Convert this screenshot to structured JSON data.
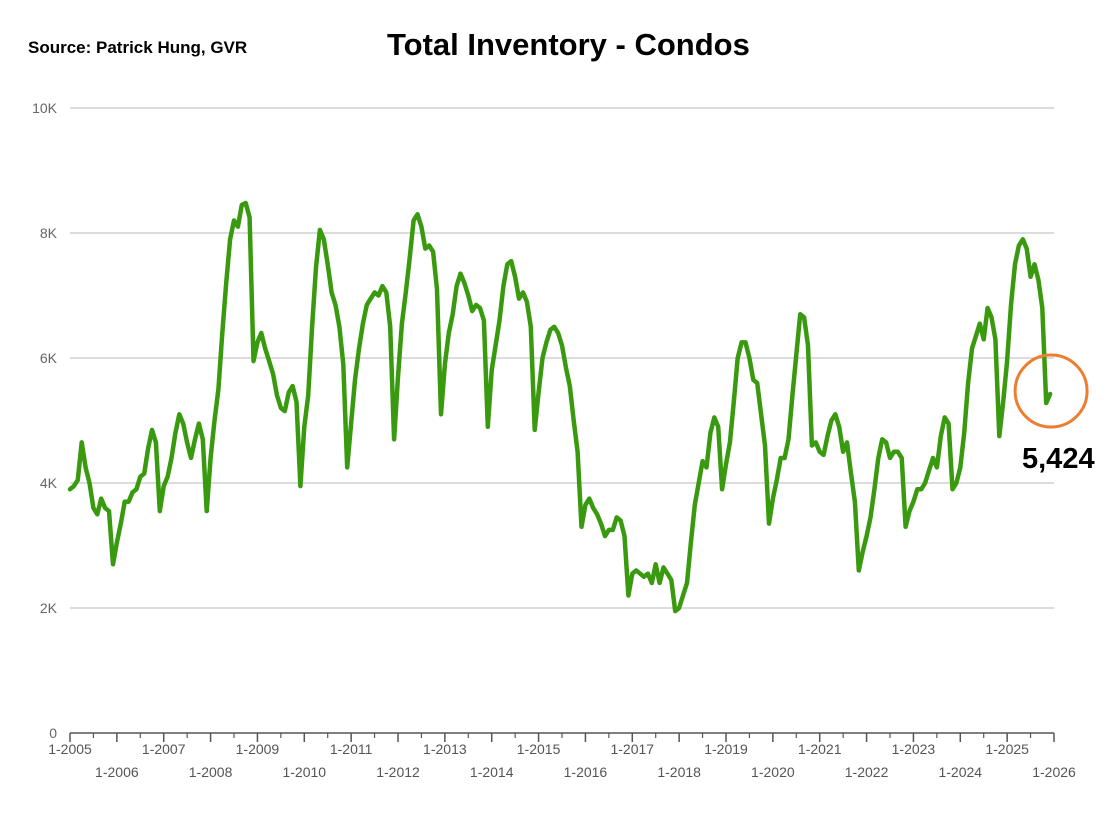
{
  "source": "Source:  Patrick Hung, GVR",
  "chart_data": {
    "type": "line",
    "title": "Total Inventory - Condos",
    "xlabel": "",
    "ylabel": "",
    "ylim": [
      0,
      10000
    ],
    "yticks": [
      {
        "value": 0,
        "label": "0"
      },
      {
        "value": 2000,
        "label": "2K"
      },
      {
        "value": 4000,
        "label": "4K"
      },
      {
        "value": 6000,
        "label": "6K"
      },
      {
        "value": 8000,
        "label": "8K"
      },
      {
        "value": 10000,
        "label": "10K"
      }
    ],
    "xlim": [
      "2005-01",
      "2026-01"
    ],
    "xticks": [
      "1-2005",
      "1-2006",
      "1-2007",
      "1-2008",
      "1-2009",
      "1-2010",
      "1-2011",
      "1-2012",
      "1-2013",
      "1-2014",
      "1-2015",
      "1-2016",
      "1-2017",
      "1-2018",
      "1-2019",
      "1-2020",
      "1-2021",
      "1-2022",
      "1-2023",
      "1-2024",
      "1-2025",
      "1-2026"
    ],
    "grid": true,
    "line_color": "#3a9a0f",
    "highlight_color": "#ed7d31",
    "series": [
      {
        "points": [
          [
            "2005-01",
            3900
          ],
          [
            "2005-02",
            3950
          ],
          [
            "2005-03",
            4050
          ],
          [
            "2005-04",
            4650
          ],
          [
            "2005-05",
            4250
          ],
          [
            "2005-06",
            4000
          ],
          [
            "2005-07",
            3600
          ],
          [
            "2005-08",
            3500
          ],
          [
            "2005-09",
            3750
          ],
          [
            "2005-10",
            3600
          ],
          [
            "2005-11",
            3550
          ],
          [
            "2005-12",
            2700
          ],
          [
            "2006-01",
            3050
          ],
          [
            "2006-02",
            3350
          ],
          [
            "2006-03",
            3700
          ],
          [
            "2006-04",
            3700
          ],
          [
            "2006-05",
            3850
          ],
          [
            "2006-06",
            3900
          ],
          [
            "2006-07",
            4100
          ],
          [
            "2006-08",
            4150
          ],
          [
            "2006-09",
            4550
          ],
          [
            "2006-10",
            4850
          ],
          [
            "2006-11",
            4650
          ],
          [
            "2006-12",
            3550
          ],
          [
            "2007-01",
            3950
          ],
          [
            "2007-02",
            4100
          ],
          [
            "2007-03",
            4400
          ],
          [
            "2007-04",
            4800
          ],
          [
            "2007-05",
            5100
          ],
          [
            "2007-06",
            4950
          ],
          [
            "2007-07",
            4650
          ],
          [
            "2007-08",
            4400
          ],
          [
            "2007-09",
            4700
          ],
          [
            "2007-10",
            4950
          ],
          [
            "2007-11",
            4700
          ],
          [
            "2007-12",
            3550
          ],
          [
            "2008-01",
            4400
          ],
          [
            "2008-02",
            5000
          ],
          [
            "2008-03",
            5500
          ],
          [
            "2008-04",
            6400
          ],
          [
            "2008-05",
            7200
          ],
          [
            "2008-06",
            7900
          ],
          [
            "2008-07",
            8200
          ],
          [
            "2008-08",
            8100
          ],
          [
            "2008-09",
            8450
          ],
          [
            "2008-10",
            8480
          ],
          [
            "2008-11",
            8250
          ],
          [
            "2008-12",
            5950
          ],
          [
            "2009-01",
            6250
          ],
          [
            "2009-02",
            6400
          ],
          [
            "2009-03",
            6150
          ],
          [
            "2009-04",
            5950
          ],
          [
            "2009-05",
            5750
          ],
          [
            "2009-06",
            5400
          ],
          [
            "2009-07",
            5200
          ],
          [
            "2009-08",
            5150
          ],
          [
            "2009-09",
            5450
          ],
          [
            "2009-10",
            5550
          ],
          [
            "2009-11",
            5300
          ],
          [
            "2009-12",
            3950
          ],
          [
            "2010-01",
            4900
          ],
          [
            "2010-02",
            5400
          ],
          [
            "2010-03",
            6500
          ],
          [
            "2010-04",
            7450
          ],
          [
            "2010-05",
            8050
          ],
          [
            "2010-06",
            7900
          ],
          [
            "2010-07",
            7500
          ],
          [
            "2010-08",
            7050
          ],
          [
            "2010-09",
            6850
          ],
          [
            "2010-10",
            6500
          ],
          [
            "2010-11",
            5900
          ],
          [
            "2010-12",
            4250
          ],
          [
            "2011-01",
            4950
          ],
          [
            "2011-02",
            5650
          ],
          [
            "2011-03",
            6150
          ],
          [
            "2011-04",
            6550
          ],
          [
            "2011-05",
            6850
          ],
          [
            "2011-06",
            6950
          ],
          [
            "2011-07",
            7050
          ],
          [
            "2011-08",
            7000
          ],
          [
            "2011-09",
            7150
          ],
          [
            "2011-10",
            7050
          ],
          [
            "2011-11",
            6500
          ],
          [
            "2011-12",
            4700
          ],
          [
            "2012-01",
            5700
          ],
          [
            "2012-02",
            6550
          ],
          [
            "2012-03",
            7050
          ],
          [
            "2012-04",
            7600
          ],
          [
            "2012-05",
            8200
          ],
          [
            "2012-06",
            8300
          ],
          [
            "2012-07",
            8100
          ],
          [
            "2012-08",
            7750
          ],
          [
            "2012-09",
            7800
          ],
          [
            "2012-10",
            7700
          ],
          [
            "2012-11",
            7100
          ],
          [
            "2012-12",
            5100
          ],
          [
            "2013-01",
            5900
          ],
          [
            "2013-02",
            6400
          ],
          [
            "2013-03",
            6700
          ],
          [
            "2013-04",
            7150
          ],
          [
            "2013-05",
            7350
          ],
          [
            "2013-06",
            7200
          ],
          [
            "2013-07",
            7000
          ],
          [
            "2013-08",
            6750
          ],
          [
            "2013-09",
            6850
          ],
          [
            "2013-10",
            6800
          ],
          [
            "2013-11",
            6600
          ],
          [
            "2013-12",
            4900
          ],
          [
            "2014-01",
            5800
          ],
          [
            "2014-02",
            6200
          ],
          [
            "2014-03",
            6600
          ],
          [
            "2014-04",
            7150
          ],
          [
            "2014-05",
            7500
          ],
          [
            "2014-06",
            7550
          ],
          [
            "2014-07",
            7300
          ],
          [
            "2014-08",
            6950
          ],
          [
            "2014-09",
            7050
          ],
          [
            "2014-10",
            6900
          ],
          [
            "2014-11",
            6500
          ],
          [
            "2014-12",
            4850
          ],
          [
            "2015-01",
            5450
          ],
          [
            "2015-02",
            6000
          ],
          [
            "2015-03",
            6250
          ],
          [
            "2015-04",
            6450
          ],
          [
            "2015-05",
            6500
          ],
          [
            "2015-06",
            6400
          ],
          [
            "2015-07",
            6200
          ],
          [
            "2015-08",
            5850
          ],
          [
            "2015-09",
            5550
          ],
          [
            "2015-10",
            5000
          ],
          [
            "2015-11",
            4500
          ],
          [
            "2015-12",
            3300
          ],
          [
            "2016-01",
            3650
          ],
          [
            "2016-02",
            3750
          ],
          [
            "2016-03",
            3600
          ],
          [
            "2016-04",
            3500
          ],
          [
            "2016-05",
            3350
          ],
          [
            "2016-06",
            3150
          ],
          [
            "2016-07",
            3250
          ],
          [
            "2016-08",
            3250
          ],
          [
            "2016-09",
            3450
          ],
          [
            "2016-10",
            3400
          ],
          [
            "2016-11",
            3150
          ],
          [
            "2016-12",
            2200
          ],
          [
            "2017-01",
            2550
          ],
          [
            "2017-02",
            2600
          ],
          [
            "2017-03",
            2550
          ],
          [
            "2017-04",
            2500
          ],
          [
            "2017-05",
            2550
          ],
          [
            "2017-06",
            2400
          ],
          [
            "2017-07",
            2700
          ],
          [
            "2017-08",
            2400
          ],
          [
            "2017-09",
            2650
          ],
          [
            "2017-10",
            2550
          ],
          [
            "2017-11",
            2450
          ],
          [
            "2017-12",
            1950
          ],
          [
            "2018-01",
            2000
          ],
          [
            "2018-02",
            2200
          ],
          [
            "2018-03",
            2400
          ],
          [
            "2018-04",
            3050
          ],
          [
            "2018-05",
            3650
          ],
          [
            "2018-06",
            4000
          ],
          [
            "2018-07",
            4350
          ],
          [
            "2018-08",
            4250
          ],
          [
            "2018-09",
            4800
          ],
          [
            "2018-10",
            5050
          ],
          [
            "2018-11",
            4900
          ],
          [
            "2018-12",
            3900
          ],
          [
            "2019-01",
            4300
          ],
          [
            "2019-02",
            4650
          ],
          [
            "2019-03",
            5300
          ],
          [
            "2019-04",
            6000
          ],
          [
            "2019-05",
            6250
          ],
          [
            "2019-06",
            6250
          ],
          [
            "2019-07",
            6000
          ],
          [
            "2019-08",
            5650
          ],
          [
            "2019-09",
            5600
          ],
          [
            "2019-10",
            5100
          ],
          [
            "2019-11",
            4600
          ],
          [
            "2019-12",
            3350
          ],
          [
            "2020-01",
            3750
          ],
          [
            "2020-02",
            4050
          ],
          [
            "2020-03",
            4400
          ],
          [
            "2020-04",
            4400
          ],
          [
            "2020-05",
            4700
          ],
          [
            "2020-06",
            5400
          ],
          [
            "2020-07",
            6050
          ],
          [
            "2020-08",
            6700
          ],
          [
            "2020-09",
            6650
          ],
          [
            "2020-10",
            6200
          ],
          [
            "2020-11",
            4600
          ],
          [
            "2020-12",
            4650
          ],
          [
            "2021-01",
            4500
          ],
          [
            "2021-02",
            4450
          ],
          [
            "2021-03",
            4750
          ],
          [
            "2021-04",
            5000
          ],
          [
            "2021-05",
            5100
          ],
          [
            "2021-06",
            4900
          ],
          [
            "2021-07",
            4500
          ],
          [
            "2021-08",
            4650
          ],
          [
            "2021-09",
            4150
          ],
          [
            "2021-10",
            3700
          ],
          [
            "2021-11",
            2600
          ],
          [
            "2021-12",
            2900
          ],
          [
            "2022-01",
            3150
          ],
          [
            "2022-02",
            3450
          ],
          [
            "2022-03",
            3900
          ],
          [
            "2022-04",
            4400
          ],
          [
            "2022-05",
            4700
          ],
          [
            "2022-06",
            4650
          ],
          [
            "2022-07",
            4400
          ],
          [
            "2022-08",
            4500
          ],
          [
            "2022-09",
            4500
          ],
          [
            "2022-10",
            4400
          ],
          [
            "2022-11",
            3300
          ],
          [
            "2022-12",
            3550
          ],
          [
            "2023-01",
            3700
          ],
          [
            "2023-02",
            3900
          ],
          [
            "2023-03",
            3900
          ],
          [
            "2023-04",
            4000
          ],
          [
            "2023-05",
            4200
          ],
          [
            "2023-06",
            4400
          ],
          [
            "2023-07",
            4250
          ],
          [
            "2023-08",
            4750
          ],
          [
            "2023-09",
            5050
          ],
          [
            "2023-10",
            4950
          ],
          [
            "2023-11",
            3900
          ],
          [
            "2023-12",
            4000
          ],
          [
            "2024-01",
            4250
          ],
          [
            "2024-02",
            4800
          ],
          [
            "2024-03",
            5600
          ],
          [
            "2024-04",
            6150
          ],
          [
            "2024-05",
            6350
          ],
          [
            "2024-06",
            6550
          ],
          [
            "2024-07",
            6300
          ],
          [
            "2024-08",
            6800
          ],
          [
            "2024-09",
            6650
          ],
          [
            "2024-10",
            6300
          ],
          [
            "2024-11",
            4750
          ],
          [
            "2024-12",
            5300
          ],
          [
            "2025-01",
            5950
          ],
          [
            "2025-02",
            6850
          ],
          [
            "2025-03",
            7500
          ],
          [
            "2025-04",
            7800
          ],
          [
            "2025-05",
            7900
          ],
          [
            "2025-06",
            7750
          ],
          [
            "2025-07",
            7300
          ],
          [
            "2025-08",
            7500
          ],
          [
            "2025-09",
            7250
          ],
          [
            "2025-10",
            6800
          ],
          [
            "2025-11",
            5280
          ],
          [
            "2025-12",
            5424
          ]
        ]
      }
    ],
    "annotations": [
      {
        "x": "2025-12",
        "y": 5424,
        "label": "5,424",
        "shape": "circle"
      }
    ]
  }
}
